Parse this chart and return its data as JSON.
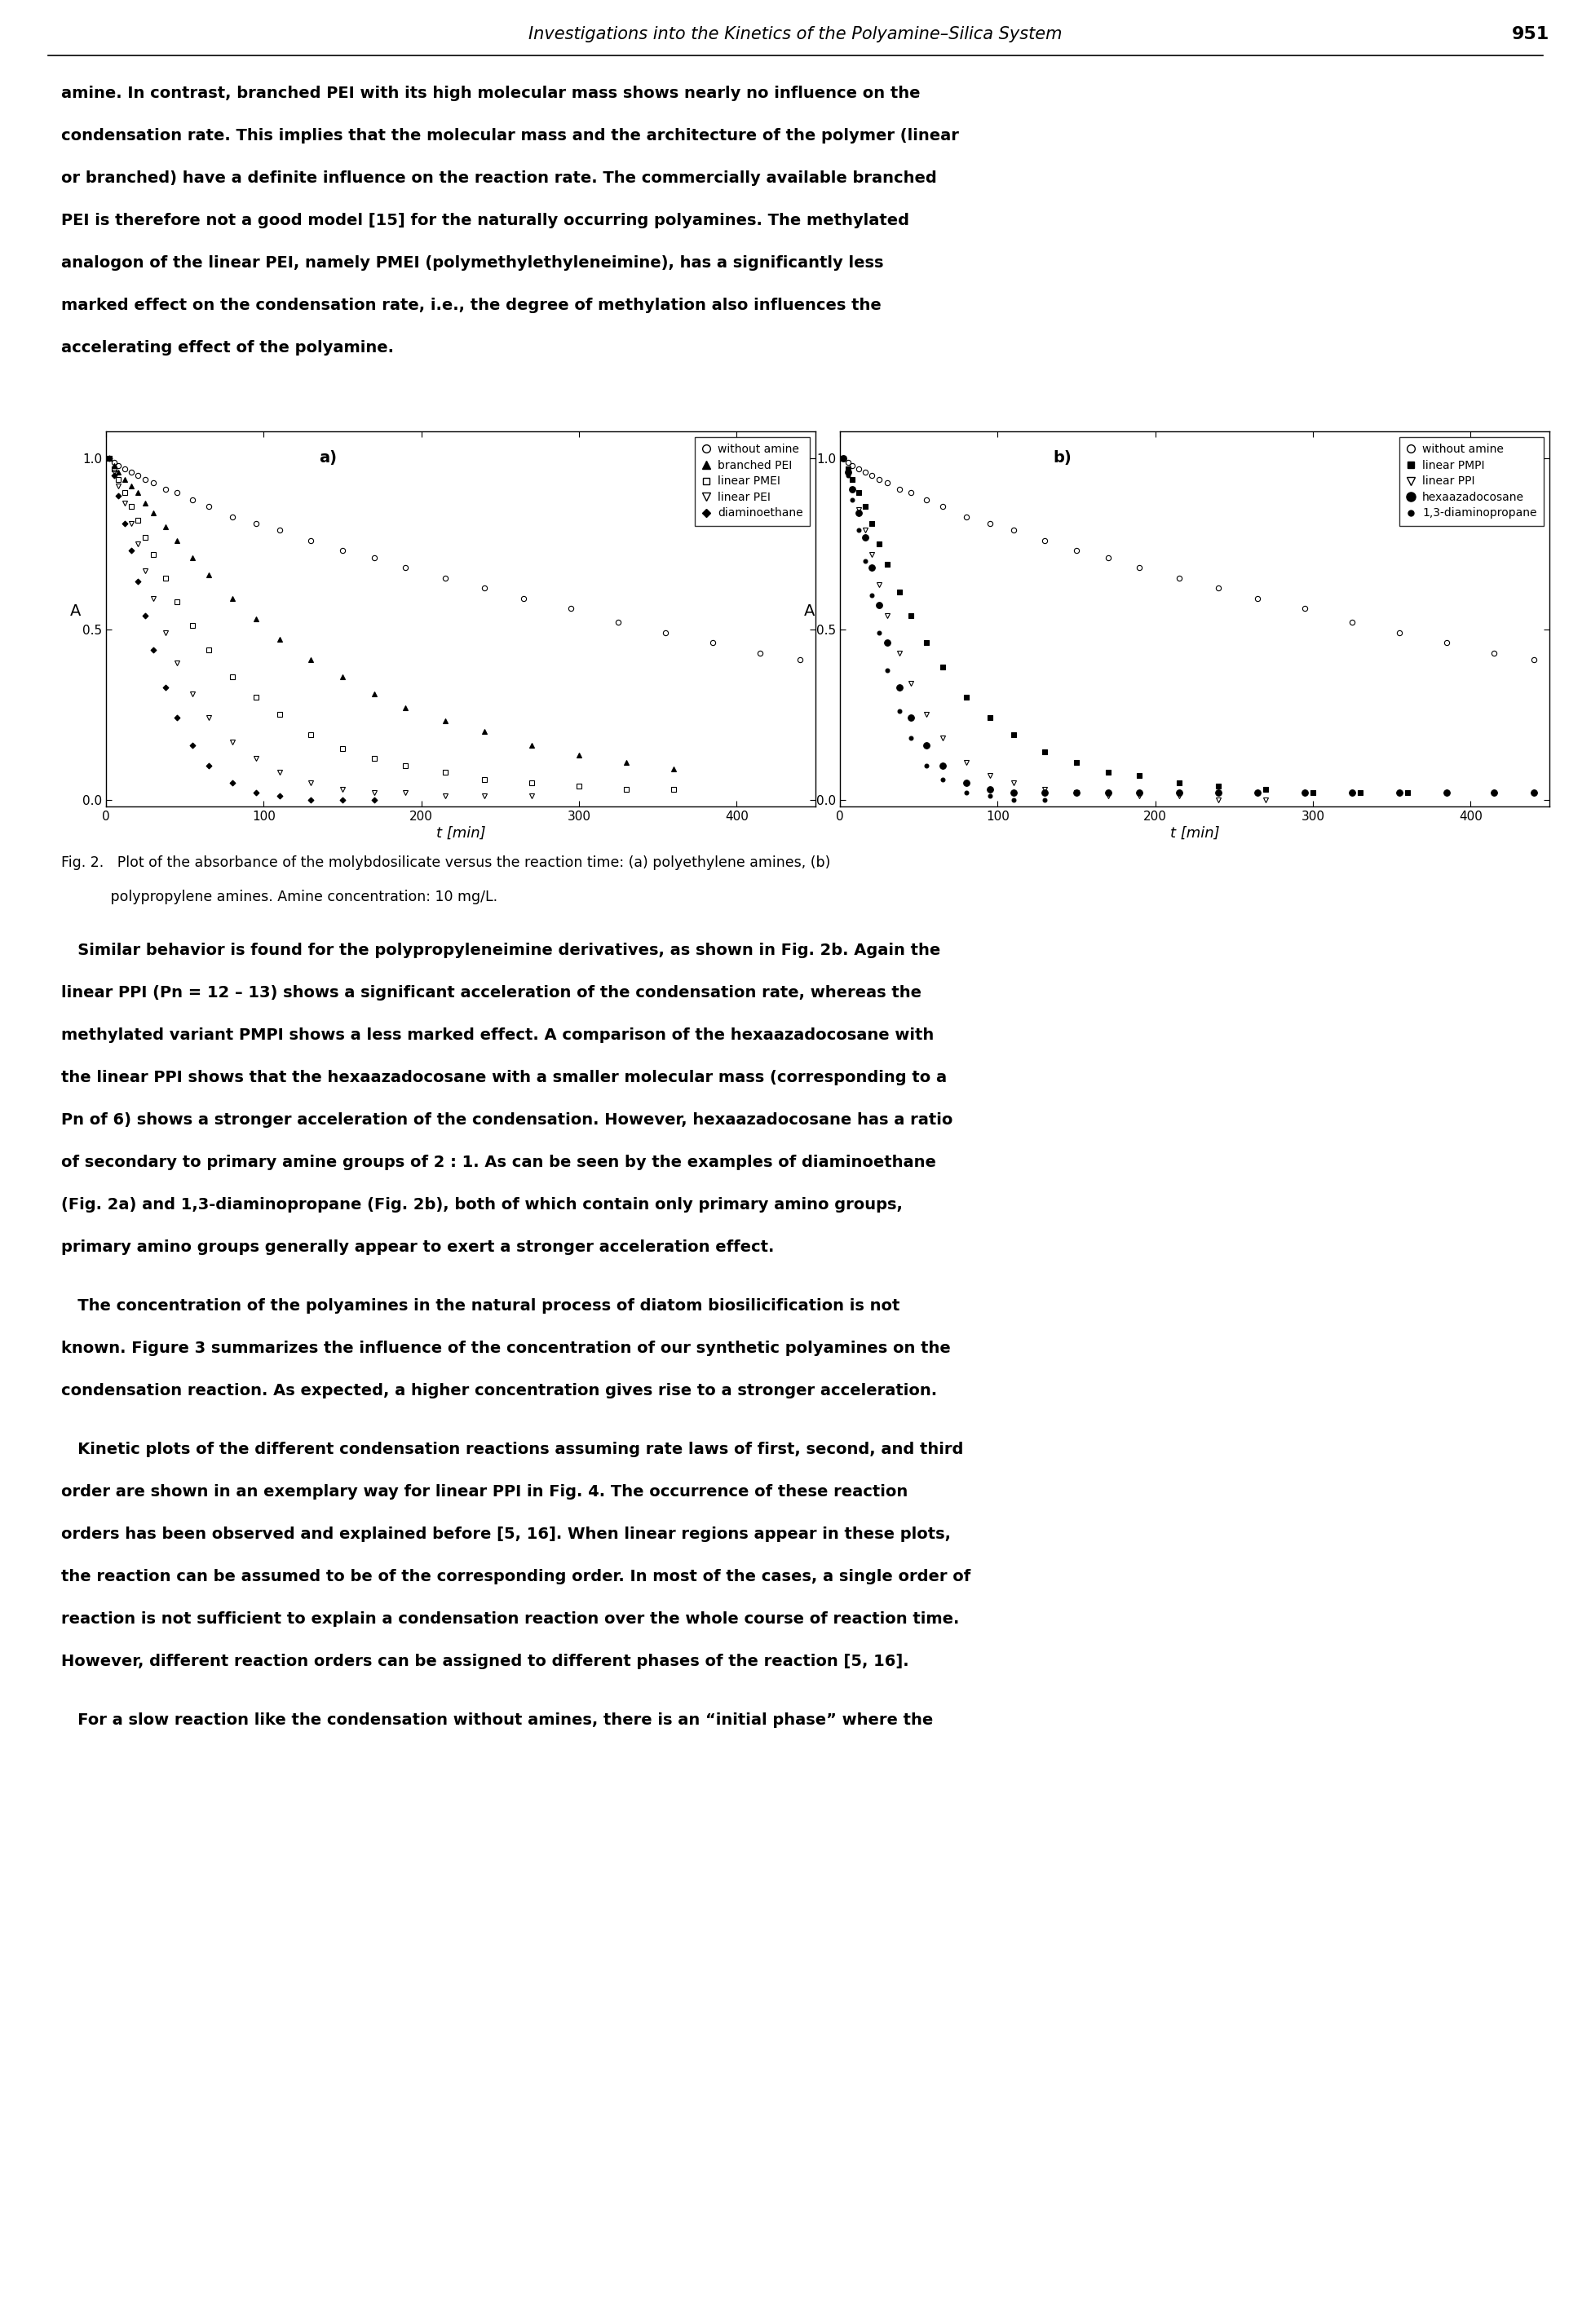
{
  "title_page": "Investigations into the Kinetics of the Polyamine–Silica System",
  "page_number": "951",
  "subplot_a": {
    "label": "a)",
    "xlabel": "t [min]",
    "ylabel": "A",
    "xlim": [
      0,
      450
    ],
    "ylim": [
      -0.02,
      1.08
    ],
    "xticks": [
      0,
      100,
      200,
      300,
      400
    ],
    "yticks": [
      0.0,
      0.5,
      1.0
    ],
    "series": [
      {
        "name": "without amine",
        "marker": "o",
        "filled": false,
        "ms": 4.5,
        "x": [
          2,
          5,
          8,
          12,
          16,
          20,
          25,
          30,
          38,
          45,
          55,
          65,
          80,
          95,
          110,
          130,
          150,
          170,
          190,
          215,
          240,
          265,
          295,
          325,
          355,
          385,
          415,
          440
        ],
        "y": [
          1.0,
          0.99,
          0.98,
          0.97,
          0.96,
          0.95,
          0.94,
          0.93,
          0.91,
          0.9,
          0.88,
          0.86,
          0.83,
          0.81,
          0.79,
          0.76,
          0.73,
          0.71,
          0.68,
          0.65,
          0.62,
          0.59,
          0.56,
          0.52,
          0.49,
          0.46,
          0.43,
          0.41
        ]
      },
      {
        "name": "branched PEI",
        "marker": "^",
        "filled": true,
        "ms": 4.5,
        "x": [
          2,
          5,
          8,
          12,
          16,
          20,
          25,
          30,
          38,
          45,
          55,
          65,
          80,
          95,
          110,
          130,
          150,
          170,
          190,
          215,
          240,
          270,
          300,
          330,
          360
        ],
        "y": [
          1.0,
          0.98,
          0.96,
          0.94,
          0.92,
          0.9,
          0.87,
          0.84,
          0.8,
          0.76,
          0.71,
          0.66,
          0.59,
          0.53,
          0.47,
          0.41,
          0.36,
          0.31,
          0.27,
          0.23,
          0.2,
          0.16,
          0.13,
          0.11,
          0.09
        ]
      },
      {
        "name": "linear PMEI",
        "marker": "s",
        "filled": false,
        "ms": 4.0,
        "x": [
          2,
          5,
          8,
          12,
          16,
          20,
          25,
          30,
          38,
          45,
          55,
          65,
          80,
          95,
          110,
          130,
          150,
          170,
          190,
          215,
          240,
          270,
          300,
          330,
          360
        ],
        "y": [
          1.0,
          0.97,
          0.94,
          0.9,
          0.86,
          0.82,
          0.77,
          0.72,
          0.65,
          0.58,
          0.51,
          0.44,
          0.36,
          0.3,
          0.25,
          0.19,
          0.15,
          0.12,
          0.1,
          0.08,
          0.06,
          0.05,
          0.04,
          0.03,
          0.03
        ]
      },
      {
        "name": "linear PEI",
        "marker": "v",
        "filled": false,
        "ms": 4.5,
        "x": [
          2,
          5,
          8,
          12,
          16,
          20,
          25,
          30,
          38,
          45,
          55,
          65,
          80,
          95,
          110,
          130,
          150,
          170,
          190,
          215,
          240,
          270
        ],
        "y": [
          1.0,
          0.96,
          0.92,
          0.87,
          0.81,
          0.75,
          0.67,
          0.59,
          0.49,
          0.4,
          0.31,
          0.24,
          0.17,
          0.12,
          0.08,
          0.05,
          0.03,
          0.02,
          0.02,
          0.01,
          0.01,
          0.01
        ]
      },
      {
        "name": "diaminoethane",
        "marker": "D",
        "filled": true,
        "ms": 3.5,
        "x": [
          2,
          5,
          8,
          12,
          16,
          20,
          25,
          30,
          38,
          45,
          55,
          65,
          80,
          95,
          110,
          130,
          150,
          170
        ],
        "y": [
          1.0,
          0.95,
          0.89,
          0.81,
          0.73,
          0.64,
          0.54,
          0.44,
          0.33,
          0.24,
          0.16,
          0.1,
          0.05,
          0.02,
          0.01,
          0.0,
          0.0,
          0.0
        ]
      }
    ]
  },
  "subplot_b": {
    "label": "b)",
    "xlabel": "t [min]",
    "ylabel": "A",
    "xlim": [
      0,
      450
    ],
    "ylim": [
      -0.02,
      1.08
    ],
    "xticks": [
      0,
      100,
      200,
      300,
      400
    ],
    "yticks": [
      0.0,
      0.5,
      1.0
    ],
    "series": [
      {
        "name": "without amine",
        "marker": "o",
        "filled": false,
        "ms": 4.5,
        "x": [
          2,
          5,
          8,
          12,
          16,
          20,
          25,
          30,
          38,
          45,
          55,
          65,
          80,
          95,
          110,
          130,
          150,
          170,
          190,
          215,
          240,
          265,
          295,
          325,
          355,
          385,
          415,
          440
        ],
        "y": [
          1.0,
          0.99,
          0.98,
          0.97,
          0.96,
          0.95,
          0.94,
          0.93,
          0.91,
          0.9,
          0.88,
          0.86,
          0.83,
          0.81,
          0.79,
          0.76,
          0.73,
          0.71,
          0.68,
          0.65,
          0.62,
          0.59,
          0.56,
          0.52,
          0.49,
          0.46,
          0.43,
          0.41
        ]
      },
      {
        "name": "linear PMPI",
        "marker": "s",
        "filled": true,
        "ms": 4.0,
        "x": [
          2,
          5,
          8,
          12,
          16,
          20,
          25,
          30,
          38,
          45,
          55,
          65,
          80,
          95,
          110,
          130,
          150,
          170,
          190,
          215,
          240,
          270,
          300,
          330,
          360
        ],
        "y": [
          1.0,
          0.97,
          0.94,
          0.9,
          0.86,
          0.81,
          0.75,
          0.69,
          0.61,
          0.54,
          0.46,
          0.39,
          0.3,
          0.24,
          0.19,
          0.14,
          0.11,
          0.08,
          0.07,
          0.05,
          0.04,
          0.03,
          0.02,
          0.02,
          0.02
        ]
      },
      {
        "name": "linear PPI",
        "marker": "v",
        "filled": false,
        "ms": 4.5,
        "x": [
          2,
          5,
          8,
          12,
          16,
          20,
          25,
          30,
          38,
          45,
          55,
          65,
          80,
          95,
          110,
          130,
          150,
          170,
          190,
          215,
          240,
          270
        ],
        "y": [
          1.0,
          0.96,
          0.91,
          0.85,
          0.79,
          0.72,
          0.63,
          0.54,
          0.43,
          0.34,
          0.25,
          0.18,
          0.11,
          0.07,
          0.05,
          0.03,
          0.02,
          0.01,
          0.01,
          0.01,
          0.0,
          0.0
        ]
      },
      {
        "name": "hexaazadocosane",
        "marker": "o",
        "filled": true,
        "ms": 5.5,
        "x": [
          2,
          5,
          8,
          12,
          16,
          20,
          25,
          30,
          38,
          45,
          55,
          65,
          80,
          95,
          110,
          130,
          150,
          170,
          190,
          215,
          240,
          265,
          295,
          325,
          355,
          385,
          415,
          440
        ],
        "y": [
          1.0,
          0.96,
          0.91,
          0.84,
          0.77,
          0.68,
          0.57,
          0.46,
          0.33,
          0.24,
          0.16,
          0.1,
          0.05,
          0.03,
          0.02,
          0.02,
          0.02,
          0.02,
          0.02,
          0.02,
          0.02,
          0.02,
          0.02,
          0.02,
          0.02,
          0.02,
          0.02,
          0.02
        ]
      },
      {
        "name": "1,3-diaminopropane",
        "marker": "o",
        "filled": true,
        "ms": 3.5,
        "x": [
          2,
          5,
          8,
          12,
          16,
          20,
          25,
          30,
          38,
          45,
          55,
          65,
          80,
          95,
          110,
          130
        ],
        "y": [
          1.0,
          0.95,
          0.88,
          0.79,
          0.7,
          0.6,
          0.49,
          0.38,
          0.26,
          0.18,
          0.1,
          0.06,
          0.02,
          0.01,
          0.0,
          0.0
        ]
      }
    ]
  },
  "body_text1_lines": [
    "amine. In contrast, branched PEI with its high molecular mass shows nearly no influence on the",
    "condensation rate. This implies that the molecular mass and the architecture of the polymer (linear",
    "or branched) have a definite influence on the reaction rate. The commercially available branched",
    "PEI is therefore not a good model [15] for the naturally occurring polyamines. The methylated",
    "analogon of the linear PEI, namely PMEI (polymethylethyleneimine), has a significantly less",
    "marked effect on the condensation rate, i.e., the degree of methylation also influences the",
    "accelerating effect of the polyamine."
  ],
  "fig_caption_line1": "Fig. 2.   Plot of the absorbance of the molybdosilicate versus the reaction time: (a) polyethylene amines, (b)",
  "fig_caption_line2": "           polypropylene amines. Amine concentration: 10 mg/L.",
  "body_text2_lines": [
    "   Similar behavior is found for the polypropyleneimine derivatives, as shown in Fig. 2b. Again the",
    "linear PPI (Pn = 12 – 13) shows a significant acceleration of the condensation rate, whereas the",
    "methylated variant PMPI shows a less marked effect. A comparison of the hexaazadocosane with",
    "the linear PPI shows that the hexaazadocosane with a smaller molecular mass (corresponding to a",
    "Pn of 6) shows a stronger acceleration of the condensation. However, hexaazadocosane has a ratio",
    "of secondary to primary amine groups of 2 : 1. As can be seen by the examples of diaminoethane",
    "(Fig. 2a) and 1,3-diaminopropane (Fig. 2b), both of which contain only primary amino groups,",
    "primary amino groups generally appear to exert a stronger acceleration effect."
  ],
  "body_text3_lines": [
    "   The concentration of the polyamines in the natural process of diatom biosilicification is not",
    "known. Figure 3 summarizes the influence of the concentration of our synthetic polyamines on the",
    "condensation reaction. As expected, a higher concentration gives rise to a stronger acceleration."
  ],
  "body_text4_lines": [
    "   Kinetic plots of the different condensation reactions assuming rate laws of first, second, and third",
    "order are shown in an exemplary way for linear PPI in Fig. 4. The occurrence of these reaction",
    "orders has been observed and explained before [5, 16]. When linear regions appear in these plots,",
    "the reaction can be assumed to be of the corresponding order. In most of the cases, a single order of",
    "reaction is not sufficient to explain a condensation reaction over the whole course of reaction time.",
    "However, different reaction orders can be assigned to different phases of the reaction [5, 16]."
  ],
  "body_text5_lines": [
    "   For a slow reaction like the condensation without amines, there is an “initial phase” where the"
  ]
}
